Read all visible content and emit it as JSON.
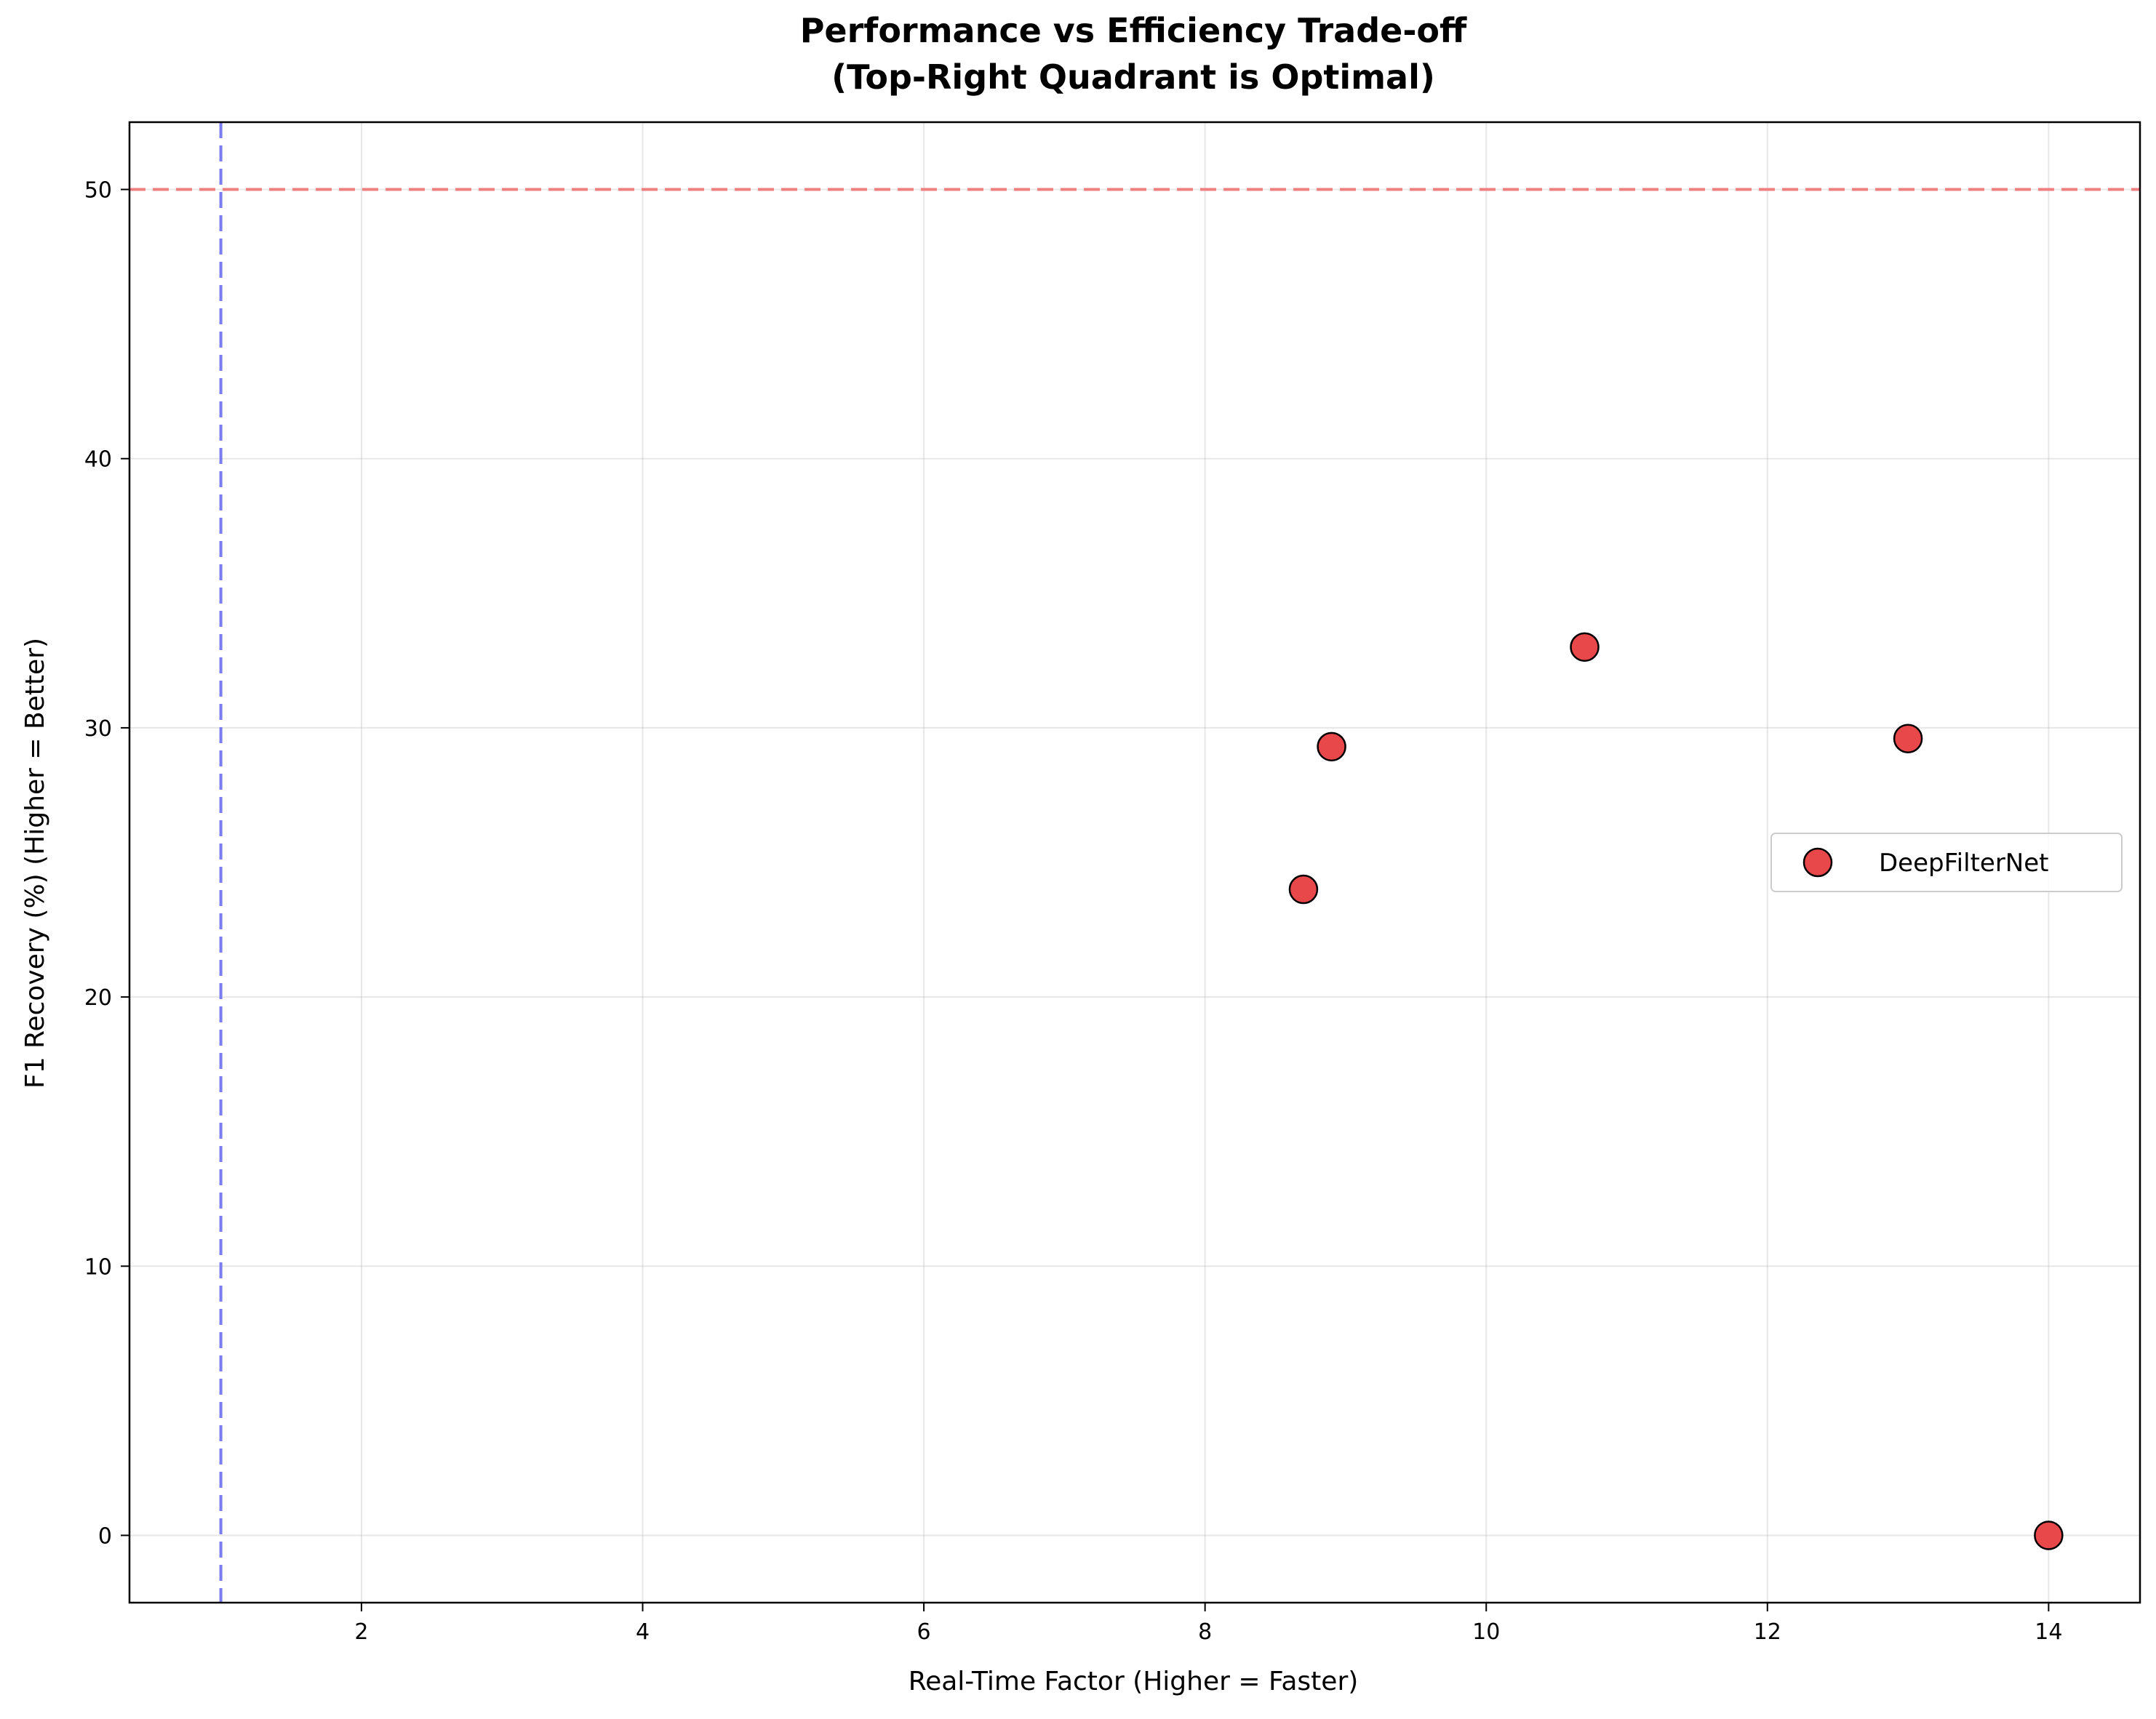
{
  "chart_data": {
    "type": "scatter",
    "title": "Performance vs Efficiency Trade-off",
    "subtitle": "(Top-Right Quadrant is Optimal)",
    "xlabel": "Real-Time Factor (Higher = Faster)",
    "ylabel": "F1 Recovery (%) (Higher = Better)",
    "xlim": [
      0.35,
      14.65
    ],
    "ylim": [
      -2.5,
      52.5
    ],
    "xticks": [
      2,
      4,
      6,
      8,
      10,
      12,
      14
    ],
    "yticks": [
      0,
      10,
      20,
      30,
      40,
      50
    ],
    "grid": true,
    "legend_position": "center-right",
    "series": [
      {
        "name": "DeepFilterNet",
        "color": "#e8484a",
        "edge_color": "#000000",
        "points": [
          {
            "x": 8.7,
            "y": 24.0
          },
          {
            "x": 8.9,
            "y": 29.3
          },
          {
            "x": 10.7,
            "y": 33.0
          },
          {
            "x": 13.0,
            "y": 29.6
          },
          {
            "x": 14.0,
            "y": 0.0
          }
        ]
      }
    ],
    "reference_lines": [
      {
        "orientation": "horizontal",
        "value": 50,
        "color": "#f08080"
      },
      {
        "orientation": "vertical",
        "value": 1,
        "color": "#7b7bf2"
      }
    ]
  }
}
